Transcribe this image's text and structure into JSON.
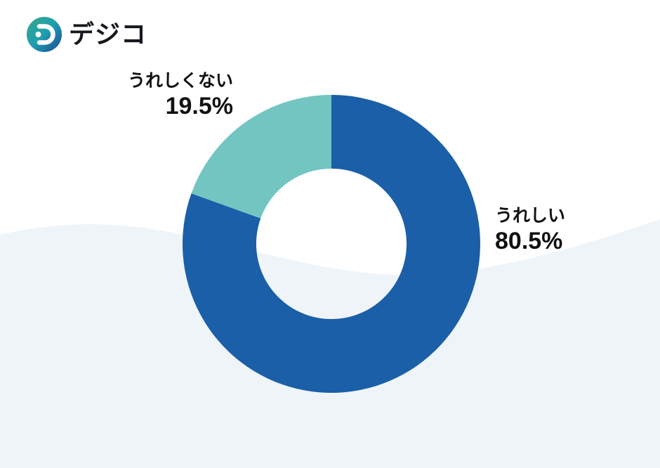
{
  "logo": {
    "brand_name": "デジコ",
    "mark_name": "digico-logo-mark"
  },
  "chart_data": {
    "type": "pie",
    "donut": true,
    "title": "",
    "start_angle_deg": 0,
    "direction": "clockwise",
    "inner_radius_ratio": 0.505,
    "segments": [
      {
        "label": "うれしい",
        "value": 80.5,
        "display": "80.5%",
        "color": "#1A5FA8"
      },
      {
        "label": "うれしくない",
        "value": 19.5,
        "display": "19.5%",
        "color": "#73C5C2"
      }
    ],
    "labels_layout": "callouts-beside-slices",
    "total": 100
  },
  "colors": {
    "background": "#FFFFFF",
    "wave": "#EFF4F8",
    "text": "#111111",
    "logo_gradient_start": "#38A88C",
    "logo_gradient_mid": "#1E9FAE",
    "logo_gradient_end": "#1C4697"
  }
}
